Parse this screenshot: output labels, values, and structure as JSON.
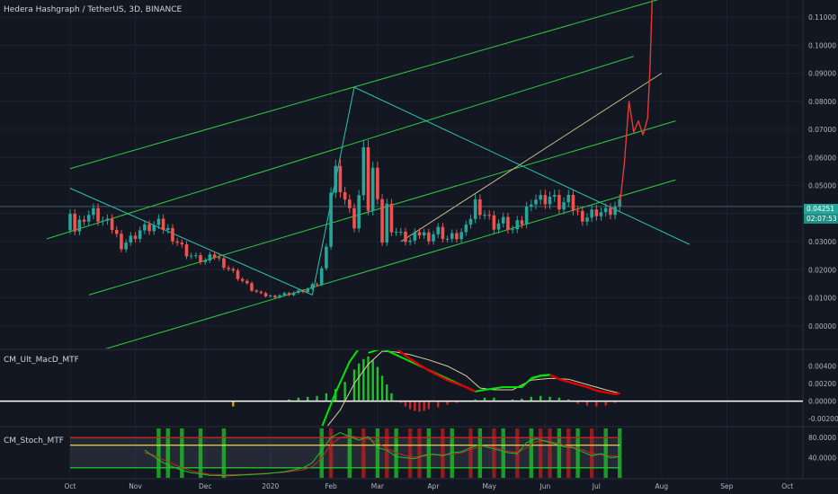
{
  "header": {
    "title": "Hedera Hashgraph / TetherUS, 3D, BINANCE"
  },
  "price_tag": {
    "price": "0.04251",
    "countdown": "02:07:53"
  },
  "indicators": {
    "macd_label": "CM_Ult_MacD_MTF",
    "stoch_label": "CM_Stoch_MTF"
  },
  "colors": {
    "background": "#131722",
    "up": "#26a69a",
    "down": "#ef5350",
    "pump": "#e53935",
    "channel": "#2ecc40",
    "wedge": "#26c6b0",
    "trend": "#c8b98a",
    "macd_fast": "#00e600",
    "macd_slow": "#e00000",
    "zero_line": "#ffffff"
  },
  "chart_data": [
    {
      "type": "candlestick",
      "title": "Hedera Hashgraph / TetherUS, 3D, BINANCE",
      "x_ticks": [
        "Oct",
        "Nov",
        "Dec",
        "2020",
        "Feb",
        "Mar",
        "Apr",
        "May",
        "Jun",
        "Jul",
        "Aug",
        "Sep",
        "Oct"
      ],
      "y_ticks": [
        "0.11000",
        "0.10000",
        "0.09000",
        "0.08000",
        "0.07000",
        "0.06000",
        "0.05000",
        "0.04000",
        "0.03000",
        "0.02000",
        "0.01000",
        "0.00000"
      ],
      "ylim": [
        -0.002,
        0.115
      ],
      "last_price": 0.04251,
      "close_path": [
        [
          1,
          0.034
        ],
        [
          3,
          0.039
        ],
        [
          5,
          0.04
        ],
        [
          7,
          0.037
        ],
        [
          9,
          0.035
        ],
        [
          11,
          0.029
        ],
        [
          13,
          0.031
        ],
        [
          15,
          0.034
        ],
        [
          17,
          0.035
        ],
        [
          19,
          0.036
        ],
        [
          21,
          0.034
        ],
        [
          23,
          0.03
        ],
        [
          25,
          0.026
        ],
        [
          27,
          0.024
        ],
        [
          29,
          0.023
        ],
        [
          31,
          0.025
        ],
        [
          33,
          0.022
        ],
        [
          35,
          0.019
        ],
        [
          37,
          0.016
        ],
        [
          39,
          0.013
        ],
        [
          41,
          0.011
        ],
        [
          43,
          0.0105
        ],
        [
          45,
          0.011
        ],
        [
          47,
          0.0115
        ],
        [
          49,
          0.012
        ],
        [
          51,
          0.013
        ],
        [
          53,
          0.015
        ],
        [
          54,
          0.02
        ],
        [
          55,
          0.03
        ],
        [
          56,
          0.048
        ],
        [
          57,
          0.055
        ],
        [
          58,
          0.05
        ],
        [
          59,
          0.045
        ],
        [
          60,
          0.04
        ],
        [
          61,
          0.036
        ],
        [
          62,
          0.046
        ],
        [
          63,
          0.06
        ],
        [
          64,
          0.042
        ],
        [
          65,
          0.055
        ],
        [
          66,
          0.048
        ],
        [
          67,
          0.03
        ],
        [
          68,
          0.042
        ],
        [
          69,
          0.035
        ],
        [
          71,
          0.032
        ],
        [
          73,
          0.03
        ],
        [
          75,
          0.033
        ],
        [
          77,
          0.032
        ],
        [
          79,
          0.034
        ],
        [
          81,
          0.031
        ],
        [
          83,
          0.032
        ],
        [
          85,
          0.034
        ],
        [
          87,
          0.044
        ],
        [
          89,
          0.04
        ],
        [
          91,
          0.036
        ],
        [
          93,
          0.037
        ],
        [
          95,
          0.034
        ],
        [
          97,
          0.037
        ],
        [
          99,
          0.046
        ],
        [
          101,
          0.045
        ],
        [
          103,
          0.046
        ],
        [
          105,
          0.043
        ],
        [
          107,
          0.044
        ],
        [
          109,
          0.04
        ],
        [
          111,
          0.039
        ],
        [
          113,
          0.041
        ],
        [
          115,
          0.04
        ],
        [
          117,
          0.042
        ],
        [
          118,
          0.0425
        ]
      ],
      "pump_path": [
        [
          118,
          0.0425
        ],
        [
          119,
          0.058
        ],
        [
          120,
          0.08
        ],
        [
          121,
          0.069
        ],
        [
          122,
          0.073
        ],
        [
          123,
          0.068
        ],
        [
          124,
          0.074
        ],
        [
          124.5,
          0.092
        ],
        [
          125,
          0.118
        ]
      ],
      "rising_channel_lines": [
        [
          [
            0,
            0.056
          ],
          [
            130,
            0.118
          ]
        ],
        [
          [
            -5,
            0.031
          ],
          [
            121,
            0.096
          ]
        ],
        [
          [
            4,
            0.011
          ],
          [
            130,
            0.073
          ]
        ],
        [
          [
            6,
            -0.009
          ],
          [
            130,
            0.052
          ]
        ]
      ],
      "wedge_lines": [
        [
          [
            0,
            0.049
          ],
          [
            52,
            0.011
          ]
        ],
        [
          [
            52,
            0.011
          ],
          [
            61,
            0.085
          ]
        ],
        [
          [
            61,
            0.085
          ],
          [
            133,
            0.029
          ]
        ]
      ],
      "trend_line": [
        [
          71,
          0.03
        ],
        [
          127,
          0.09
        ]
      ],
      "horizontal_level": 0.0425
    },
    {
      "type": "histogram+line",
      "name": "CM_Ult_MacD_MTF",
      "y_ticks": [
        "0.00400",
        "0.00200",
        "0.00000",
        "-0.00200"
      ],
      "ylim": [
        -0.0028,
        0.0058
      ],
      "histogram": [
        [
          43,
          0.0001
        ],
        [
          47,
          0.0002
        ],
        [
          49,
          0.0004
        ],
        [
          51,
          0.0005
        ],
        [
          53,
          0.0006
        ],
        [
          55,
          0.0009
        ],
        [
          57,
          0.0014
        ],
        [
          59,
          0.0022
        ],
        [
          61,
          0.0036
        ],
        [
          62,
          0.0043
        ],
        [
          63,
          0.0048
        ],
        [
          64,
          0.0051
        ],
        [
          65,
          0.0047
        ],
        [
          66,
          0.0039
        ],
        [
          67,
          0.0029
        ],
        [
          68,
          0.0019
        ],
        [
          69,
          0.0009
        ],
        [
          71,
          -0.0002
        ],
        [
          72,
          -0.0006
        ],
        [
          73,
          -0.0009
        ],
        [
          74,
          -0.0011
        ],
        [
          75,
          -0.0012
        ],
        [
          76,
          -0.0011
        ],
        [
          77,
          -0.0009
        ],
        [
          79,
          -0.0007
        ],
        [
          81,
          -0.0004
        ],
        [
          83,
          -0.0002
        ],
        [
          87,
          0.0002
        ],
        [
          89,
          0.0004
        ],
        [
          91,
          0.0004
        ],
        [
          95,
          0.0002
        ],
        [
          97,
          0.0003
        ],
        [
          99,
          0.0005
        ],
        [
          101,
          0.0006
        ],
        [
          103,
          0.0005
        ],
        [
          105,
          0.0004
        ],
        [
          107,
          0.0002
        ],
        [
          109,
          -0.0003
        ],
        [
          111,
          -0.0005
        ],
        [
          113,
          -0.0006
        ],
        [
          115,
          -0.0005
        ],
        [
          117,
          -0.0002
        ]
      ],
      "histogram_outlier": [
        [
          35,
          -0.0006
        ]
      ],
      "signal_line": [
        [
          55,
          -0.003
        ],
        [
          58,
          -0.001
        ],
        [
          61,
          0.002
        ],
        [
          64,
          0.0042
        ],
        [
          67,
          0.0057
        ],
        [
          70,
          0.0056
        ],
        [
          73,
          0.0053
        ],
        [
          77,
          0.0047
        ],
        [
          81,
          0.004
        ],
        [
          85,
          0.0029
        ],
        [
          88,
          0.0015
        ],
        [
          91,
          0.0013
        ],
        [
          95,
          0.0013
        ],
        [
          99,
          0.0024
        ],
        [
          103,
          0.0026
        ],
        [
          107,
          0.0025
        ],
        [
          111,
          0.0019
        ],
        [
          115,
          0.0013
        ],
        [
          118,
          0.0009
        ]
      ],
      "macd_line": [
        [
          64,
          0.0055
        ],
        [
          67,
          0.006
        ],
        [
          70,
          0.006
        ],
        [
          73,
          0.0048
        ],
        [
          77,
          0.0035
        ],
        [
          81,
          0.0024
        ],
        [
          85,
          0.0016
        ],
        [
          87,
          0.0011
        ],
        [
          89,
          0.0013
        ],
        [
          93,
          0.0016
        ],
        [
          97,
          0.0016
        ],
        [
          99,
          0.0026
        ],
        [
          101,
          0.0029
        ],
        [
          103,
          0.003
        ],
        [
          105,
          0.0025
        ],
        [
          107,
          0.0022
        ],
        [
          109,
          0.0019
        ],
        [
          111,
          0.0016
        ],
        [
          113,
          0.0012
        ],
        [
          115,
          0.001
        ],
        [
          117,
          0.0008
        ],
        [
          118,
          0.0009
        ]
      ]
    },
    {
      "type": "line",
      "name": "CM_Stoch_MTF",
      "y_ticks": [
        "80.0000",
        "40.0000"
      ],
      "ylim": [
        0,
        100
      ],
      "levels": [
        80,
        65,
        20
      ],
      "k_line": [
        [
          16,
          55
        ],
        [
          18,
          42
        ],
        [
          20,
          30
        ],
        [
          22,
          22
        ],
        [
          24,
          15
        ],
        [
          26,
          10
        ],
        [
          28,
          8
        ],
        [
          30,
          5
        ],
        [
          34,
          4
        ],
        [
          38,
          6
        ],
        [
          42,
          8
        ],
        [
          46,
          12
        ],
        [
          50,
          20
        ],
        [
          52,
          30
        ],
        [
          54,
          55
        ],
        [
          56,
          80
        ],
        [
          58,
          90
        ],
        [
          60,
          82
        ],
        [
          62,
          75
        ],
        [
          64,
          82
        ],
        [
          66,
          60
        ],
        [
          68,
          55
        ],
        [
          70,
          42
        ],
        [
          72,
          40
        ],
        [
          74,
          38
        ],
        [
          76,
          45
        ],
        [
          78,
          47
        ],
        [
          80,
          44
        ],
        [
          82,
          50
        ],
        [
          84,
          52
        ],
        [
          86,
          60
        ],
        [
          88,
          66
        ],
        [
          90,
          60
        ],
        [
          92,
          55
        ],
        [
          94,
          50
        ],
        [
          96,
          48
        ],
        [
          98,
          70
        ],
        [
          100,
          78
        ],
        [
          102,
          73
        ],
        [
          104,
          68
        ],
        [
          106,
          62
        ],
        [
          108,
          60
        ],
        [
          110,
          52
        ],
        [
          112,
          44
        ],
        [
          114,
          48
        ],
        [
          116,
          40
        ],
        [
          118,
          42
        ]
      ],
      "d_line": [
        [
          16,
          50
        ],
        [
          18,
          45
        ],
        [
          20,
          36
        ],
        [
          22,
          28
        ],
        [
          24,
          20
        ],
        [
          26,
          14
        ],
        [
          28,
          10
        ],
        [
          30,
          7
        ],
        [
          34,
          6
        ],
        [
          38,
          7
        ],
        [
          42,
          9
        ],
        [
          46,
          11
        ],
        [
          50,
          16
        ],
        [
          52,
          22
        ],
        [
          54,
          40
        ],
        [
          56,
          66
        ],
        [
          58,
          80
        ],
        [
          60,
          84
        ],
        [
          62,
          80
        ],
        [
          64,
          78
        ],
        [
          66,
          70
        ],
        [
          68,
          58
        ],
        [
          70,
          50
        ],
        [
          72,
          44
        ],
        [
          74,
          41
        ],
        [
          76,
          43
        ],
        [
          78,
          46
        ],
        [
          80,
          46
        ],
        [
          82,
          47
        ],
        [
          84,
          50
        ],
        [
          86,
          56
        ],
        [
          88,
          62
        ],
        [
          90,
          63
        ],
        [
          92,
          58
        ],
        [
          94,
          53
        ],
        [
          96,
          50
        ],
        [
          98,
          60
        ],
        [
          100,
          72
        ],
        [
          102,
          74
        ],
        [
          104,
          70
        ],
        [
          106,
          65
        ],
        [
          108,
          61
        ],
        [
          110,
          56
        ],
        [
          112,
          49
        ],
        [
          114,
          46
        ],
        [
          116,
          44
        ],
        [
          118,
          42
        ]
      ],
      "green_columns": [
        19,
        21,
        24,
        28,
        33,
        54,
        60,
        66,
        70,
        77,
        82,
        88,
        93,
        99,
        105,
        109,
        115,
        118
      ],
      "red_columns": [
        56,
        63,
        68,
        73,
        75,
        80,
        86,
        91,
        96,
        101,
        103,
        107,
        112
      ]
    }
  ]
}
